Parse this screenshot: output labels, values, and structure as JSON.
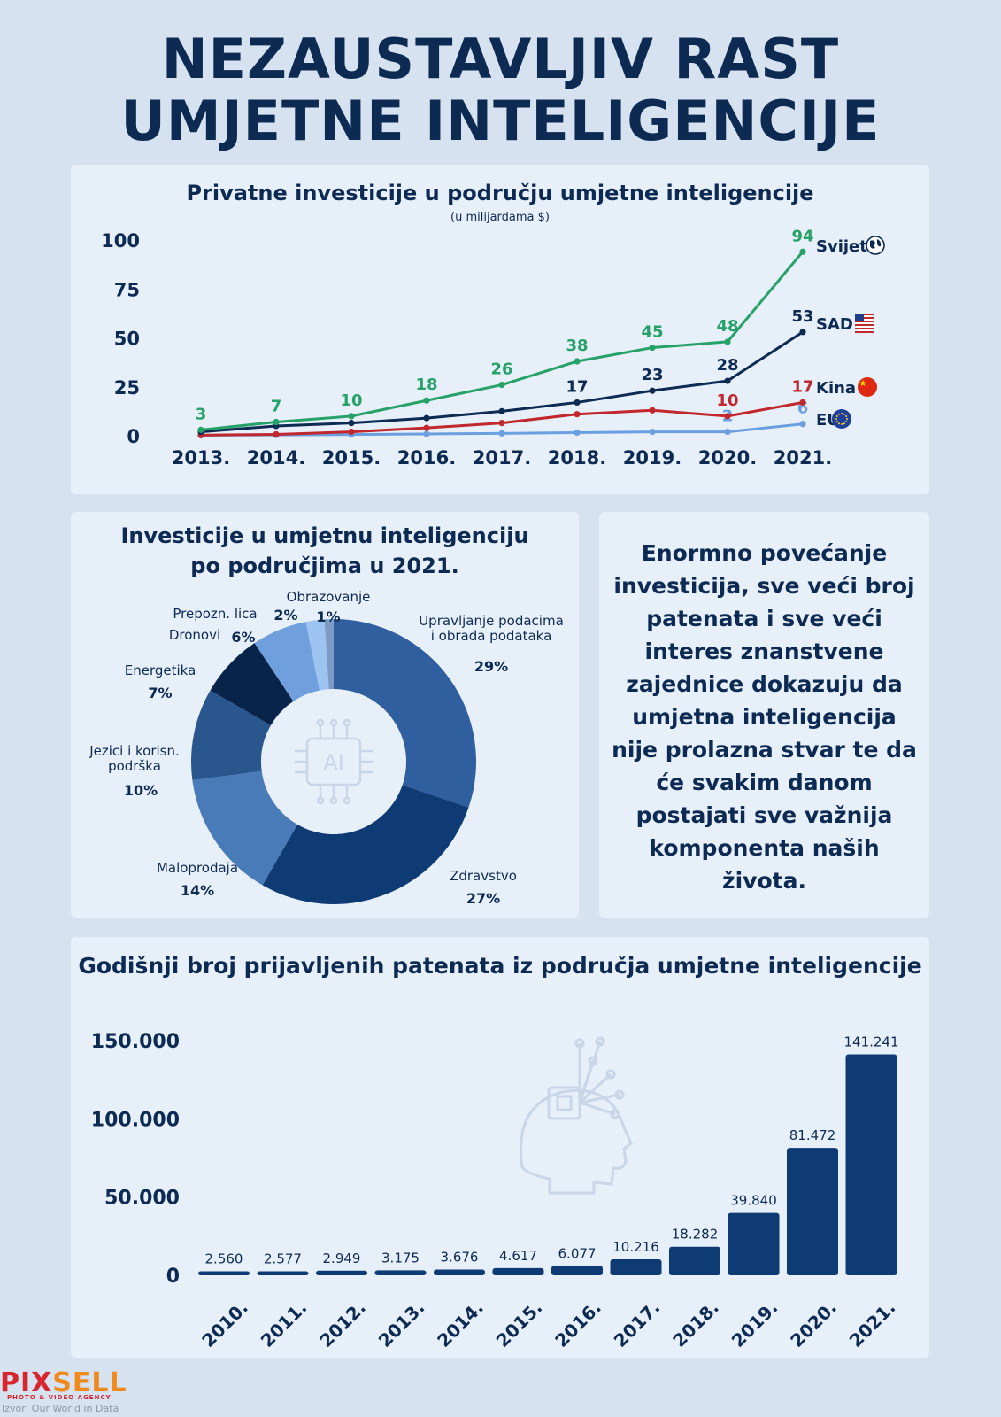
{
  "title": {
    "line1": "NEZAUSTAVLJIV RAST",
    "line2": "UMJETNE INTELIGENCIJE"
  },
  "chart_data": [
    {
      "type": "line",
      "title": "Privatne investicije u području umjetne inteligencije",
      "subtitle": "(u milijardama $)",
      "x": [
        "2013.",
        "2014.",
        "2015.",
        "2016.",
        "2017.",
        "2018.",
        "2019.",
        "2020.",
        "2021."
      ],
      "yticks": [
        "0",
        "25",
        "50",
        "75",
        "100"
      ],
      "ylim": [
        0,
        100
      ],
      "grid": false,
      "series": [
        {
          "name": "Svijet",
          "color": "#26a269",
          "icon": "globe-icon",
          "values": [
            3,
            7,
            10,
            18,
            26,
            38,
            45,
            48,
            94
          ],
          "labels": [
            "3",
            "7",
            "10",
            "18",
            "26",
            "38",
            "45",
            "48",
            "94"
          ]
        },
        {
          "name": "SAD",
          "color": "#0d2a52",
          "icon": "us-flag-icon",
          "values": [
            2,
            5,
            6.5,
            9,
            12.5,
            17,
            23,
            28,
            53
          ],
          "labels": [
            "",
            "",
            "",
            "",
            "",
            "17",
            "23",
            "28",
            "53"
          ]
        },
        {
          "name": "Kina",
          "color": "#c0282e",
          "icon": "china-flag-icon",
          "values": [
            0.3,
            0.7,
            2,
            4,
            6.5,
            11,
            13,
            10,
            17
          ],
          "labels": [
            "",
            "",
            "",
            "",
            "",
            "",
            "",
            "10",
            "17"
          ]
        },
        {
          "name": "EU",
          "color": "#6b9fe0",
          "icon": "eu-flag-icon",
          "values": [
            0.2,
            0.4,
            0.6,
            0.9,
            1.2,
            1.6,
            2,
            2,
            6
          ],
          "labels": [
            "",
            "",
            "",
            "",
            "",
            "",
            "",
            "2",
            "6"
          ]
        }
      ]
    },
    {
      "type": "pie",
      "title": "Investicije u umjetnu inteligenciju\npo područjima u 2021.",
      "title_lines": [
        "Investicije u umjetnu inteligenciju",
        "po područjima u 2021."
      ],
      "center_icon": "ai-chip-icon",
      "center_label": "AI",
      "slices": [
        {
          "name": "Upravljanje podacima\ni obrada podataka",
          "label_lines": [
            "Upravljanje podacima",
            "i obrada podataka"
          ],
          "value": 29,
          "pct": "29%",
          "color": "#2f5f9e"
        },
        {
          "name": "Zdravstvo",
          "label_lines": [
            "Zdravstvo"
          ],
          "value": 27,
          "pct": "27%",
          "color": "#0f3b74"
        },
        {
          "name": "Maloprodaja",
          "label_lines": [
            "Maloprodaja"
          ],
          "value": 14,
          "pct": "14%",
          "color": "#4a7bb9"
        },
        {
          "name": "Jezici i korisn. podrška",
          "label_lines": [
            "Jezici i korisn.",
            "podrška"
          ],
          "value": 10,
          "pct": "10%",
          "color": "#2a568e"
        },
        {
          "name": "Energetika",
          "label_lines": [
            "Energetika"
          ],
          "value": 7,
          "pct": "7%",
          "color": "#08244a"
        },
        {
          "name": "Dronovi",
          "label_lines": [
            "Dronovi"
          ],
          "value": 6,
          "pct": "6%",
          "color": "#6f9fdc"
        },
        {
          "name": "Prepozn. lica",
          "label_lines": [
            "Prepozn. lica"
          ],
          "value": 2,
          "pct": "2%",
          "color": "#9dc3f0"
        },
        {
          "name": "Obrazovanje",
          "label_lines": [
            "Obrazovanje"
          ],
          "value": 1,
          "pct": "1%",
          "color": "#7f9bc3"
        }
      ]
    },
    {
      "type": "bar",
      "title": "Godišnji broj prijavljenih patenata iz područja umjetne inteligencije",
      "center_icon": "ai-head-icon",
      "categories": [
        "2010.",
        "2011.",
        "2012.",
        "2013.",
        "2014.",
        "2015.",
        "2016.",
        "2017.",
        "2018.",
        "2019.",
        "2020.",
        "2021."
      ],
      "values": [
        2560,
        2577,
        2949,
        3175,
        3676,
        4617,
        6077,
        10216,
        18282,
        39840,
        81472,
        141241
      ],
      "value_labels": [
        "2.560",
        "2.577",
        "2.949",
        "3.175",
        "3.676",
        "4.617",
        "6.077",
        "10.216",
        "18.282",
        "39.840",
        "81.472",
        "141.241"
      ],
      "yticks": [
        "0",
        "50.000",
        "100.000",
        "150.000"
      ],
      "ylim": [
        0,
        150000
      ],
      "grid": false,
      "color": "#0f3b74"
    }
  ],
  "text_block": {
    "lines": [
      "Enormno povećanje",
      "investicija, sve veći broj",
      "patenata i sve veći",
      "interes znanstvene",
      "zajednice dokazuju da",
      "umjetna inteligencija",
      "nije prolazna stvar te da",
      "će svakim danom",
      "postajati sve važnija",
      "komponenta naših",
      "života."
    ]
  },
  "footer": {
    "logo_first": "PIX",
    "logo_rest": "SELL",
    "tagline": "PHOTO & VIDEO AGENCY",
    "source": "Izvor: Our World in Data"
  }
}
